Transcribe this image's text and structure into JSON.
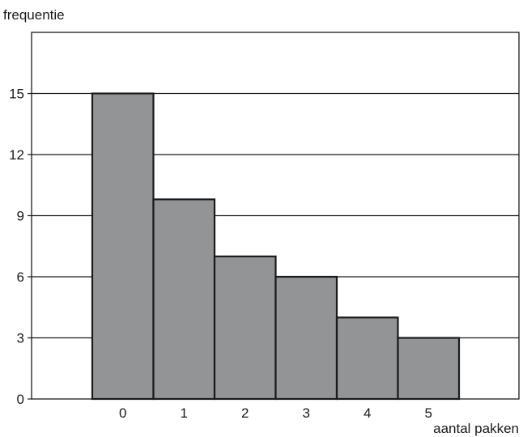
{
  "chart_data": {
    "type": "bar",
    "ylabel": "frequentie",
    "xlabel": "aantal pakken",
    "categories": [
      "0",
      "1",
      "2",
      "3",
      "4",
      "5"
    ],
    "values": [
      15,
      9.8,
      7,
      6,
      4,
      3
    ],
    "ylim": [
      0,
      18
    ],
    "yticks": [
      0,
      3,
      6,
      9,
      12,
      15
    ],
    "grid": true,
    "bar_color": "#939496",
    "bar_edge_color": "#1a1a1a",
    "bar_gap": 0,
    "legend": "none"
  }
}
